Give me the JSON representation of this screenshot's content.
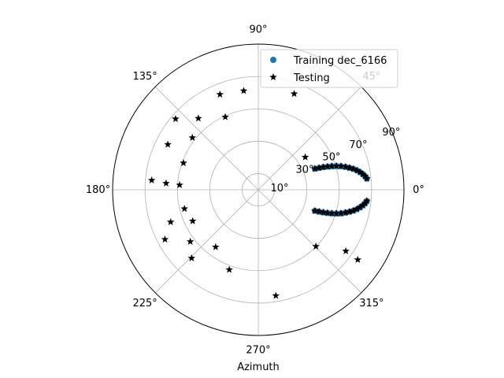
{
  "chart_data": {
    "type": "scatter",
    "projection": "polar",
    "xlabel": "Azimuth",
    "theta_tick_labels": [
      "0°",
      "45°",
      "90°",
      "135°",
      "180°",
      "225°",
      "270°",
      "315°"
    ],
    "r_tick_labels": [
      "10°",
      "30°",
      "50°",
      "70°",
      "90°"
    ],
    "r_range": [
      0,
      90
    ],
    "grid": true,
    "legend": {
      "placement": "top-right"
    },
    "series": [
      {
        "name": "Training dec_6166",
        "marker": "circle",
        "color": "#1f77b4",
        "points": [
          {
            "az": 20.4,
            "el": 37.3
          },
          {
            "az": 19.8,
            "el": 39.9
          },
          {
            "az": 19.2,
            "el": 42.5
          },
          {
            "az": 18.5,
            "el": 45.1
          },
          {
            "az": 17.8,
            "el": 47.7
          },
          {
            "az": 16.9,
            "el": 50.4
          },
          {
            "az": 15.9,
            "el": 53.1
          },
          {
            "az": 14.7,
            "el": 55.7
          },
          {
            "az": 13.5,
            "el": 58.0
          },
          {
            "az": 12.4,
            "el": 60.1
          },
          {
            "az": 11.1,
            "el": 62.1
          },
          {
            "az": 9.8,
            "el": 63.8
          },
          {
            "az": 8.5,
            "el": 65.3
          },
          {
            "az": 7.2,
            "el": 66.5
          },
          {
            "az": 5.9,
            "el": 67.4
          },
          {
            "az": -20.4,
            "el": 37.3
          },
          {
            "az": -19.8,
            "el": 39.9
          },
          {
            "az": -19.2,
            "el": 42.5
          },
          {
            "az": -18.5,
            "el": 45.1
          },
          {
            "az": -17.8,
            "el": 47.7
          },
          {
            "az": -16.9,
            "el": 50.4
          },
          {
            "az": -15.9,
            "el": 53.1
          },
          {
            "az": -14.7,
            "el": 55.7
          },
          {
            "az": -13.5,
            "el": 58.0
          },
          {
            "az": -12.4,
            "el": 60.1
          },
          {
            "az": -11.1,
            "el": 62.1
          },
          {
            "az": -9.8,
            "el": 63.8
          },
          {
            "az": -8.5,
            "el": 65.3
          },
          {
            "az": -7.2,
            "el": 66.5
          },
          {
            "az": -5.9,
            "el": 67.4
          }
        ]
      },
      {
        "name": "Testing",
        "marker": "star",
        "color": "#000000",
        "points": [
          {
            "az": 20.4,
            "el": 37.3
          },
          {
            "az": 19.8,
            "el": 39.9
          },
          {
            "az": 19.2,
            "el": 42.5
          },
          {
            "az": 18.5,
            "el": 45.1
          },
          {
            "az": 17.8,
            "el": 47.7
          },
          {
            "az": 16.9,
            "el": 50.4
          },
          {
            "az": 15.9,
            "el": 53.1
          },
          {
            "az": 14.7,
            "el": 55.7
          },
          {
            "az": 13.5,
            "el": 58.0
          },
          {
            "az": 12.4,
            "el": 60.1
          },
          {
            "az": 11.1,
            "el": 62.1
          },
          {
            "az": 9.8,
            "el": 63.8
          },
          {
            "az": 8.5,
            "el": 65.3
          },
          {
            "az": 7.2,
            "el": 66.5
          },
          {
            "az": 5.9,
            "el": 67.4
          },
          {
            "az": -20.4,
            "el": 37.3
          },
          {
            "az": -19.8,
            "el": 39.9
          },
          {
            "az": -19.2,
            "el": 42.5
          },
          {
            "az": -18.5,
            "el": 45.1
          },
          {
            "az": -17.8,
            "el": 47.7
          },
          {
            "az": -16.9,
            "el": 50.4
          },
          {
            "az": -15.9,
            "el": 53.1
          },
          {
            "az": -14.7,
            "el": 55.7
          },
          {
            "az": -13.5,
            "el": 58.0
          },
          {
            "az": -12.4,
            "el": 60.1
          },
          {
            "az": -11.1,
            "el": 62.1
          },
          {
            "az": -9.8,
            "el": 63.8
          },
          {
            "az": -8.5,
            "el": 65.3
          },
          {
            "az": -7.2,
            "el": 66.5
          },
          {
            "az": -5.9,
            "el": 67.4
          },
          {
            "az": 34.8,
            "el": 35.3
          },
          {
            "az": 69.5,
            "el": 63.3
          },
          {
            "az": 98.4,
            "el": 61.8
          },
          {
            "az": 111.9,
            "el": 63.5
          },
          {
            "az": 114.4,
            "el": 49.4
          },
          {
            "az": 130.0,
            "el": 57.6
          },
          {
            "az": 139.4,
            "el": 67.3
          },
          {
            "az": 141.7,
            "el": 51.9
          },
          {
            "az": 153.4,
            "el": 62.5
          },
          {
            "az": 160.3,
            "el": 49.1
          },
          {
            "az": 174.9,
            "el": 66.1
          },
          {
            "az": 176.0,
            "el": 57.1
          },
          {
            "az": 176.5,
            "el": 48.7
          },
          {
            "az": 194.4,
            "el": 47.1
          },
          {
            "az": 200.2,
            "el": 57.7
          },
          {
            "az": 205.5,
            "el": 44.9
          },
          {
            "az": 208.0,
            "el": 65.3
          },
          {
            "az": 217.3,
            "el": 52.8
          },
          {
            "az": 225.7,
            "el": 59.0
          },
          {
            "az": 233.3,
            "el": 44.1
          },
          {
            "az": 250.0,
            "el": 52.5
          },
          {
            "az": 279.4,
            "el": 66.3
          },
          {
            "az": 315.5,
            "el": 49.9
          },
          {
            "az": 324.9,
            "el": 75.1
          },
          {
            "az": 325.0,
            "el": 66.0
          }
        ]
      }
    ]
  }
}
